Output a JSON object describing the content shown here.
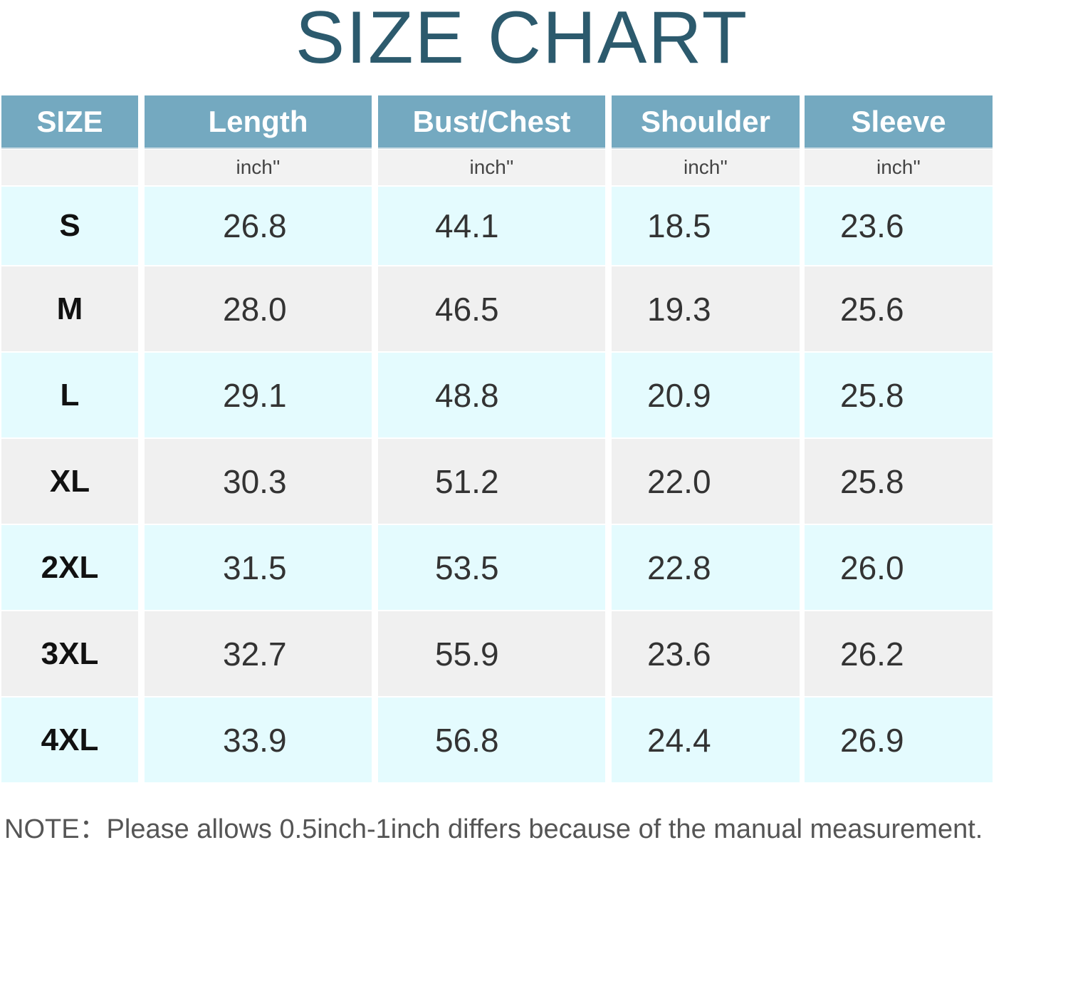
{
  "title": "SIZE CHART",
  "table": {
    "columns": [
      "SIZE",
      "Length",
      "Bust/Chest",
      "Shoulder",
      "Sleeve"
    ],
    "units": [
      "inch''",
      "inch''",
      "inch''",
      "inch''"
    ],
    "rows": [
      [
        "S",
        "26.8",
        "44.1",
        "18.5",
        "23.6"
      ],
      [
        "M",
        "28.0",
        "46.5",
        "19.3",
        "25.6"
      ],
      [
        "L",
        "29.1",
        "48.8",
        "20.9",
        "25.8"
      ],
      [
        "XL",
        "30.3",
        "51.2",
        "22.0",
        "25.8"
      ],
      [
        "2XL",
        "31.5",
        "53.5",
        "22.8",
        "26.0"
      ],
      [
        "3XL",
        "32.7",
        "55.9",
        "23.6",
        "26.2"
      ],
      [
        "4XL",
        "33.9",
        "56.8",
        "24.4",
        "26.9"
      ]
    ]
  },
  "note": "NOTE：Please allows 0.5inch-1inch differs because of the manual measurement."
}
